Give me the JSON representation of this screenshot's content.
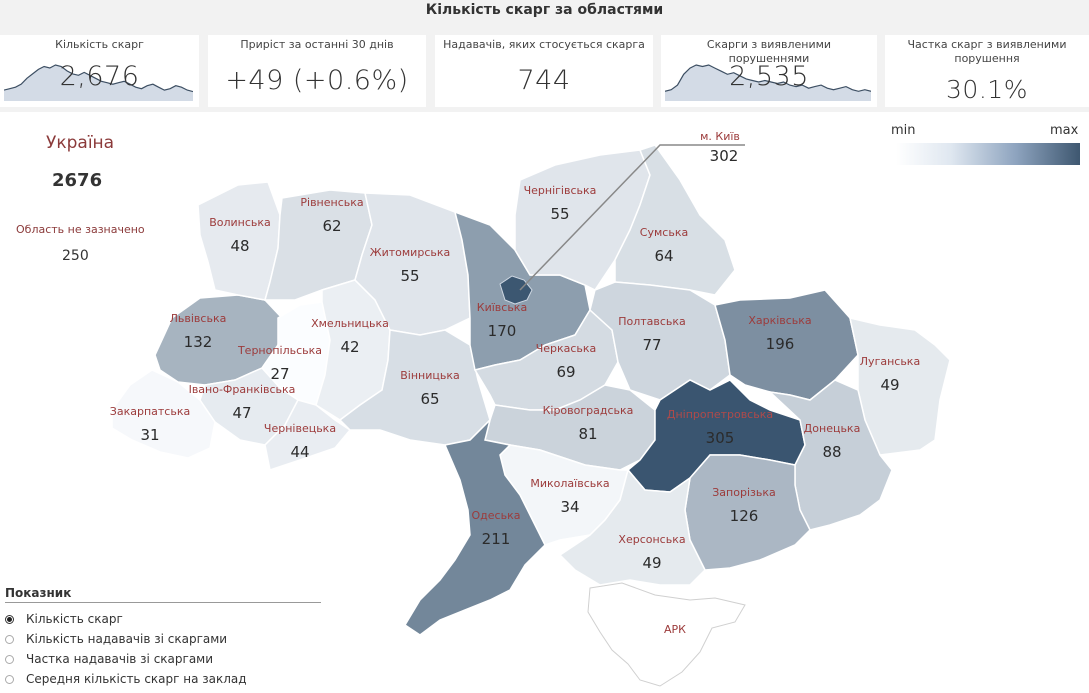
{
  "title": "Кількість скарг за областями",
  "cards": [
    {
      "label": "Кількість скарг",
      "value": "2,676",
      "sparkline": [
        6,
        7,
        8,
        10,
        14,
        17,
        20,
        22,
        21,
        23,
        22,
        19,
        17,
        16,
        18,
        16,
        14,
        12,
        11,
        10,
        11,
        12,
        10,
        8,
        7,
        9,
        10,
        8,
        6,
        7,
        9,
        8,
        6,
        5
      ]
    },
    {
      "label": "Приріст за останні 30 днів",
      "value": "+49 (+0.6%)"
    },
    {
      "label": "Надавачів, яких стосується скарга",
      "value": "744"
    },
    {
      "label": "Скарги з виявленими порушеннями",
      "value": "2,535",
      "sparkline": [
        5,
        6,
        9,
        16,
        20,
        22,
        21,
        22,
        20,
        18,
        16,
        17,
        15,
        13,
        12,
        11,
        12,
        11,
        10,
        11,
        9,
        8,
        9,
        7,
        8,
        9,
        7,
        6,
        7,
        8,
        6,
        5,
        6,
        5
      ]
    },
    {
      "label": "Частка скарг з виявленими порушення",
      "value": "30.1%"
    }
  ],
  "ukraine": {
    "label": "Україна",
    "value": "2676"
  },
  "unspecified": {
    "label": "Область не зазначено",
    "value": "250"
  },
  "legend": {
    "min": "min",
    "max": "max",
    "colors": [
      "#ffffff",
      "#3e5770"
    ]
  },
  "regions": [
    {
      "name": "Волинська",
      "value": "48"
    },
    {
      "name": "Рівненська",
      "value": "62"
    },
    {
      "name": "Житомирська",
      "value": "55"
    },
    {
      "name": "Чернігівська",
      "value": "55"
    },
    {
      "name": "Сумська",
      "value": "64"
    },
    {
      "name": "Львівська",
      "value": "132"
    },
    {
      "name": "Хмельницька",
      "value": "42"
    },
    {
      "name": "Тернопільська",
      "value": "27"
    },
    {
      "name": "Київська",
      "value": "170"
    },
    {
      "name": "Полтавська",
      "value": "77"
    },
    {
      "name": "Харківська",
      "value": "196"
    },
    {
      "name": "Луганська",
      "value": "49"
    },
    {
      "name": "Черкаська",
      "value": "69"
    },
    {
      "name": "Вінницька",
      "value": "65"
    },
    {
      "name": "Івано-Франківська",
      "value": "47"
    },
    {
      "name": "Закарпатська",
      "value": "31"
    },
    {
      "name": "Чернівецька",
      "value": "44"
    },
    {
      "name": "Кіровоградська",
      "value": "81"
    },
    {
      "name": "Дніпропетровська",
      "value": "305"
    },
    {
      "name": "Донецька",
      "value": "88"
    },
    {
      "name": "Миколаївська",
      "value": "34"
    },
    {
      "name": "Одеська",
      "value": "211"
    },
    {
      "name": "Запорізька",
      "value": "126"
    },
    {
      "name": "Херсонська",
      "value": "49"
    },
    {
      "name": "АРК",
      "value": ""
    }
  ],
  "kyiv_city": {
    "name": "м. Київ",
    "value": "302"
  },
  "indicator": {
    "title": "Показник",
    "options": [
      {
        "label": "Кількість скарг",
        "selected": true
      },
      {
        "label": "Кількість надавачів зі скаргами",
        "selected": false
      },
      {
        "label": "Частка надавачів зі скаргами",
        "selected": false
      },
      {
        "label": "Середня кількість скарг на заклад",
        "selected": false
      }
    ]
  }
}
